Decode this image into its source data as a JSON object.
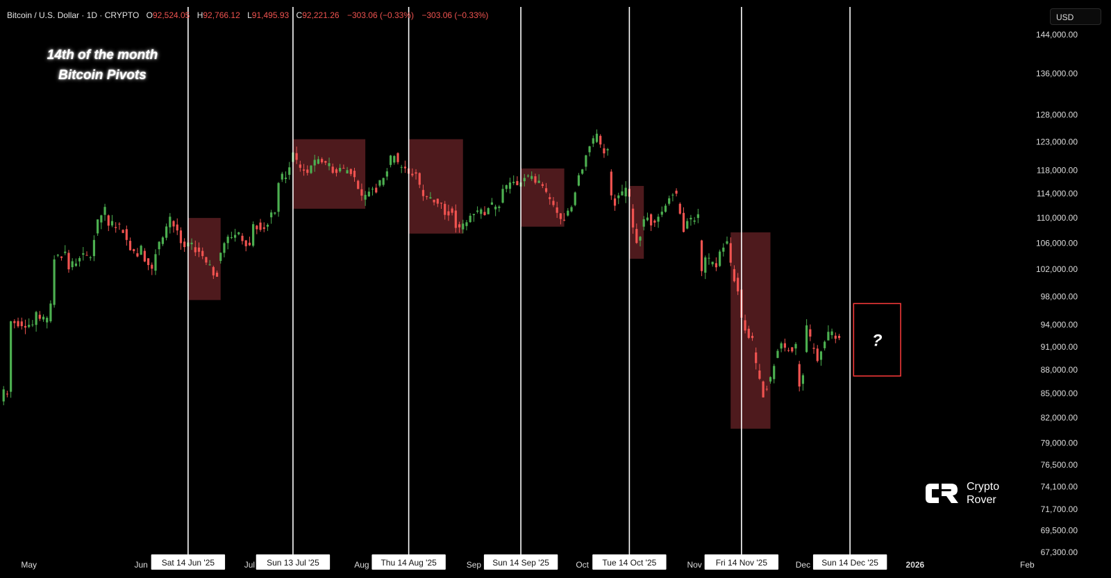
{
  "header": {
    "symbol": "Bitcoin / U.S. Dollar · 1D · CRYPTO",
    "open_label": "O",
    "open": "92,524.05",
    "high_label": "H",
    "high": "92,766.12",
    "low_label": "L",
    "low": "91,495.93",
    "close_label": "C",
    "close": "92,221.26",
    "change1": "−303.06 (−0.33%)",
    "change2": "−303.06 (−0.33%)"
  },
  "title": {
    "line1": "14th of the month",
    "line2": "Bitcoin Pivots"
  },
  "currency": "USD",
  "logo": {
    "line1": "Crypto",
    "line2": "Rover"
  },
  "colors": {
    "background": "#000000",
    "up": "#4caf50",
    "down": "#f05350",
    "zone_fill": "#5c1f22",
    "zone_border": "#ff3b3b",
    "vline": "#ffffff",
    "header_values": "#f05350"
  },
  "chart_data": {
    "type": "candlestick",
    "x_axis_type": "date",
    "y_scale": "log",
    "ylim": [
      66000,
      150000
    ],
    "xlim": [
      "2025-04-23",
      "2026-02-04"
    ],
    "yticks": [
      144000,
      136000,
      128000,
      123000,
      118000,
      114000,
      110000,
      106000,
      102000,
      98000,
      94000,
      91000,
      88000,
      85000,
      82000,
      79000,
      76500,
      74100,
      71700,
      69500,
      67300
    ],
    "ytick_labels": [
      "144,000.00",
      "136,000.00",
      "128,000.00",
      "123,000.00",
      "118,000.00",
      "114,000.00",
      "110,000.00",
      "106,000.00",
      "102,000.00",
      "98,000.00",
      "94,000.00",
      "91,000.00",
      "88,000.00",
      "85,000.00",
      "82,000.00",
      "79,000.00",
      "76,500.00",
      "74,100.00",
      "71,700.00",
      "69,500.00",
      "67,300.00"
    ],
    "month_ticks": [
      {
        "date": "2025-05-01",
        "label": "May"
      },
      {
        "date": "2025-06-01",
        "label": "Jun"
      },
      {
        "date": "2025-07-01",
        "label": "Jul"
      },
      {
        "date": "2025-08-01",
        "label": "Aug"
      },
      {
        "date": "2025-09-01",
        "label": "Sep"
      },
      {
        "date": "2025-10-01",
        "label": "Oct"
      },
      {
        "date": "2025-11-01",
        "label": "Nov"
      },
      {
        "date": "2025-12-01",
        "label": "Dec"
      },
      {
        "date": "2026-01-01",
        "label": "2026"
      },
      {
        "date": "2026-02-01",
        "label": "Feb"
      }
    ],
    "pivot_dates": [
      {
        "date": "2025-06-14",
        "label": "Sat 14 Jun '25"
      },
      {
        "date": "2025-07-13",
        "label": "Sun 13 Jul '25"
      },
      {
        "date": "2025-08-14",
        "label": "Thu 14 Aug '25"
      },
      {
        "date": "2025-09-14",
        "label": "Sun 14 Sep '25"
      },
      {
        "date": "2025-10-14",
        "label": "Tue 14 Oct '25"
      },
      {
        "date": "2025-11-14",
        "label": "Fri 14 Nov '25"
      },
      {
        "date": "2025-12-14",
        "label": "Sun 14 Dec '25"
      }
    ],
    "zones": [
      {
        "start": "2025-06-14",
        "end": "2025-06-23",
        "high": 110000,
        "low": 97500
      },
      {
        "start": "2025-07-13",
        "end": "2025-08-02",
        "high": 123500,
        "low": 111500
      },
      {
        "start": "2025-08-14",
        "end": "2025-08-29",
        "high": 123500,
        "low": 107500
      },
      {
        "start": "2025-09-14",
        "end": "2025-09-26",
        "high": 118300,
        "low": 108600
      },
      {
        "start": "2025-10-14",
        "end": "2025-10-18",
        "high": 115300,
        "low": 103600
      },
      {
        "start": "2025-11-11",
        "end": "2025-11-22",
        "high": 107700,
        "low": 80700
      },
      {
        "start": "2025-12-15",
        "end": "2025-12-28",
        "high": 97000,
        "low": 87200,
        "outlined": true,
        "label": "?"
      }
    ],
    "ohlc_points": [
      [
        "2025-04-24",
        84000,
        85500
      ],
      [
        "2025-04-26",
        85200,
        94500
      ],
      [
        "2025-05-03",
        94000,
        95800
      ],
      [
        "2025-05-07",
        94500,
        97000
      ],
      [
        "2025-05-08",
        96800,
        103500
      ],
      [
        "2025-05-12",
        104500,
        102000
      ],
      [
        "2025-05-15",
        103200,
        103700
      ],
      [
        "2025-05-19",
        104000,
        106500
      ],
      [
        "2025-05-22",
        110500,
        111800
      ],
      [
        "2025-05-24",
        108800,
        109500
      ],
      [
        "2025-05-28",
        108200,
        106500
      ],
      [
        "2025-06-01",
        104200,
        105600
      ],
      [
        "2025-06-05",
        101800,
        104300
      ],
      [
        "2025-06-09",
        108500,
        110200
      ],
      [
        "2025-06-12",
        108000,
        106000
      ],
      [
        "2025-06-14",
        105500,
        106100
      ],
      [
        "2025-06-18",
        104800,
        104000
      ],
      [
        "2025-06-22",
        101500,
        100900
      ],
      [
        "2025-06-24",
        104500,
        106000
      ],
      [
        "2025-06-28",
        107400,
        107700
      ],
      [
        "2025-07-02",
        105600,
        109000
      ],
      [
        "2025-07-06",
        108600,
        108900
      ],
      [
        "2025-07-09",
        111000,
        115800
      ],
      [
        "2025-07-12",
        117200,
        118500
      ],
      [
        "2025-07-14",
        121000,
        119800
      ],
      [
        "2025-07-18",
        117500,
        118800
      ],
      [
        "2025-07-22",
        119600,
        119300
      ],
      [
        "2025-07-26",
        117800,
        118400
      ],
      [
        "2025-07-30",
        117900,
        116800
      ],
      [
        "2025-08-02",
        113000,
        113800
      ],
      [
        "2025-08-05",
        115000,
        114200
      ],
      [
        "2025-08-08",
        116900,
        117800
      ],
      [
        "2025-08-11",
        121000,
        119400
      ],
      [
        "2025-08-14",
        118300,
        117400
      ],
      [
        "2025-08-17",
        117500,
        115500
      ],
      [
        "2025-08-20",
        113200,
        113400
      ],
      [
        "2025-08-24",
        112300,
        110500
      ],
      [
        "2025-08-27",
        111200,
        108400
      ],
      [
        "2025-08-30",
        108700,
        109300
      ],
      [
        "2025-09-02",
        111000,
        111200
      ],
      [
        "2025-09-05",
        110600,
        111600
      ],
      [
        "2025-09-09",
        112500,
        114800
      ],
      [
        "2025-09-12",
        115800,
        116000
      ],
      [
        "2025-09-14",
        115200,
        115900
      ],
      [
        "2025-09-17",
        116500,
        117000
      ],
      [
        "2025-09-20",
        115600,
        115300
      ],
      [
        "2025-09-23",
        112800,
        112100
      ],
      [
        "2025-09-26",
        109700,
        109600
      ],
      [
        "2025-09-29",
        112100,
        114200
      ],
      [
        "2025-10-02",
        118600,
        120600
      ],
      [
        "2025-10-05",
        123000,
        124500
      ],
      [
        "2025-10-08",
        121500,
        121700
      ],
      [
        "2025-10-10",
        113200,
        112000
      ],
      [
        "2025-10-14",
        114800,
        113500
      ],
      [
        "2025-10-17",
        106400,
        107000
      ],
      [
        "2025-10-20",
        110600,
        108800
      ],
      [
        "2025-10-24",
        111000,
        112000
      ],
      [
        "2025-10-27",
        114500,
        114000
      ],
      [
        "2025-10-30",
        108300,
        109500
      ],
      [
        "2025-11-02",
        110000,
        110600
      ],
      [
        "2025-11-04",
        101500,
        103800
      ],
      [
        "2025-11-08",
        102500,
        104700
      ],
      [
        "2025-11-11",
        106000,
        103000
      ],
      [
        "2025-11-14",
        99000,
        95000
      ],
      [
        "2025-11-17",
        92500,
        92200
      ],
      [
        "2025-11-20",
        86500,
        84500
      ],
      [
        "2025-11-23",
        86800,
        88500
      ],
      [
        "2025-11-26",
        91500,
        90900
      ],
      [
        "2025-11-29",
        90800,
        91400
      ],
      [
        "2025-12-01",
        86200,
        87300
      ],
      [
        "2025-12-03",
        93400,
        92400
      ],
      [
        "2025-12-06",
        89300,
        90400
      ],
      [
        "2025-12-09",
        92600,
        93100
      ],
      [
        "2025-12-11",
        92500,
        92200
      ]
    ]
  }
}
